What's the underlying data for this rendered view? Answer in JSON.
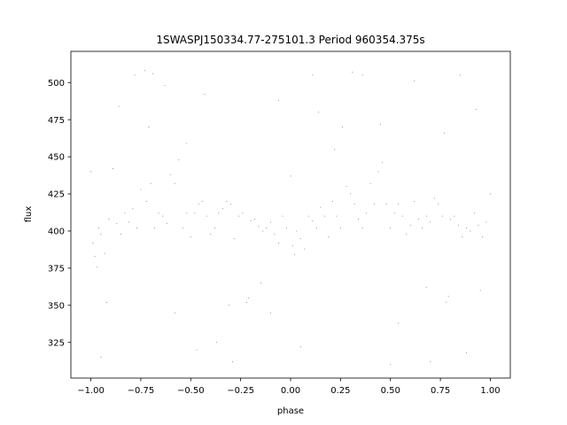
{
  "chart_data": {
    "type": "scatter",
    "title": "1SWASPJ150334.77-275101.3 Period 960354.375s",
    "xlabel": "phase",
    "ylabel": "flux",
    "xlim": [
      -1.1,
      1.1
    ],
    "ylim": [
      301,
      521
    ],
    "xticks": [
      -1.0,
      -0.75,
      -0.5,
      -0.25,
      0.0,
      0.25,
      0.5,
      0.75,
      1.0
    ],
    "xtick_labels": [
      "−1.00",
      "−0.75",
      "−0.50",
      "−0.25",
      "0.00",
      "0.25",
      "0.50",
      "0.75",
      "1.00"
    ],
    "yticks": [
      325,
      350,
      375,
      400,
      425,
      450,
      475,
      500
    ],
    "ytick_labels": [
      "325",
      "350",
      "375",
      "400",
      "425",
      "450",
      "475",
      "500"
    ],
    "grid": false,
    "legend": "none",
    "point_color": "#1f77b4",
    "series": [
      {
        "x": [
          -1.0,
          -0.99,
          -0.98,
          -0.97,
          -0.96,
          -0.95,
          -0.93,
          -0.91,
          -0.89,
          -0.87,
          -0.85,
          -0.83,
          -0.81,
          -0.79,
          -0.77,
          -0.75,
          -0.72,
          -0.7,
          -0.68,
          -0.66,
          -0.64,
          -0.62,
          -0.6,
          -0.58,
          -0.56,
          -0.54,
          -0.52,
          -0.5,
          -0.48,
          -0.46,
          -0.44,
          -0.42,
          -0.4,
          -0.38,
          -0.36,
          -0.34,
          -0.32,
          -0.3,
          -0.28,
          -0.26,
          -0.24,
          -0.22,
          -0.21,
          -0.2,
          -0.18,
          -0.16,
          -0.14,
          -0.12,
          -0.1,
          -0.08,
          -0.06,
          -0.04,
          -0.02,
          0.0,
          0.01,
          0.02,
          0.03,
          0.05,
          0.07,
          0.09,
          0.11,
          0.13,
          0.15,
          0.17,
          0.19,
          0.21,
          0.23,
          0.25,
          0.28,
          0.3,
          0.32,
          0.34,
          0.36,
          0.38,
          0.4,
          0.42,
          0.44,
          0.46,
          0.48,
          0.5,
          0.52,
          0.54,
          0.56,
          0.58,
          0.6,
          0.62,
          0.64,
          0.66,
          0.68,
          0.7,
          0.72,
          0.74,
          0.76,
          0.78,
          0.79,
          0.8,
          0.82,
          0.84,
          0.86,
          0.88,
          0.9,
          0.92,
          0.94,
          0.96,
          0.98,
          1.0
        ],
        "y": [
          440,
          392,
          383,
          376,
          402,
          398,
          385,
          408,
          442,
          405,
          398,
          412,
          406,
          415,
          402,
          428,
          420,
          432,
          402,
          412,
          410,
          405,
          438,
          432,
          448,
          402,
          412,
          396,
          412,
          418,
          420,
          410,
          398,
          402,
          412,
          415,
          420,
          418,
          395,
          410,
          412,
          352,
          355,
          407,
          408,
          403,
          400,
          402,
          406,
          398,
          392,
          410,
          402,
          437,
          390,
          384,
          400,
          395,
          388,
          410,
          407,
          402,
          416,
          410,
          396,
          420,
          410,
          402,
          430,
          425,
          418,
          408,
          402,
          412,
          432,
          418,
          440,
          446,
          418,
          402,
          412,
          418,
          410,
          398,
          404,
          420,
          408,
          402,
          410,
          406,
          422,
          418,
          410,
          352,
          356,
          408,
          410,
          404,
          396,
          402,
          400,
          412,
          404,
          396,
          406,
          425
        ]
      }
    ],
    "outliers": {
      "x": [
        -0.95,
        -0.86,
        -0.78,
        -0.73,
        -0.71,
        -0.69,
        -0.63,
        -0.52,
        -0.43,
        -0.37,
        -0.29,
        -0.15,
        -0.06,
        0.05,
        0.14,
        0.22,
        0.31,
        0.36,
        0.45,
        0.54,
        0.62,
        0.7,
        0.77,
        0.85,
        0.93,
        -0.92,
        -0.58,
        -0.31,
        0.11,
        0.68,
        0.88,
        -0.47,
        0.26,
        0.5,
        -0.1,
        0.95
      ],
      "y": [
        315,
        484,
        505,
        508,
        470,
        506,
        498,
        459,
        492,
        325,
        312,
        365,
        488,
        322,
        480,
        455,
        507,
        505,
        472,
        338,
        501,
        312,
        466,
        505,
        482,
        352,
        345,
        350,
        505,
        362,
        318,
        320,
        470,
        310,
        345,
        360
      ]
    }
  }
}
